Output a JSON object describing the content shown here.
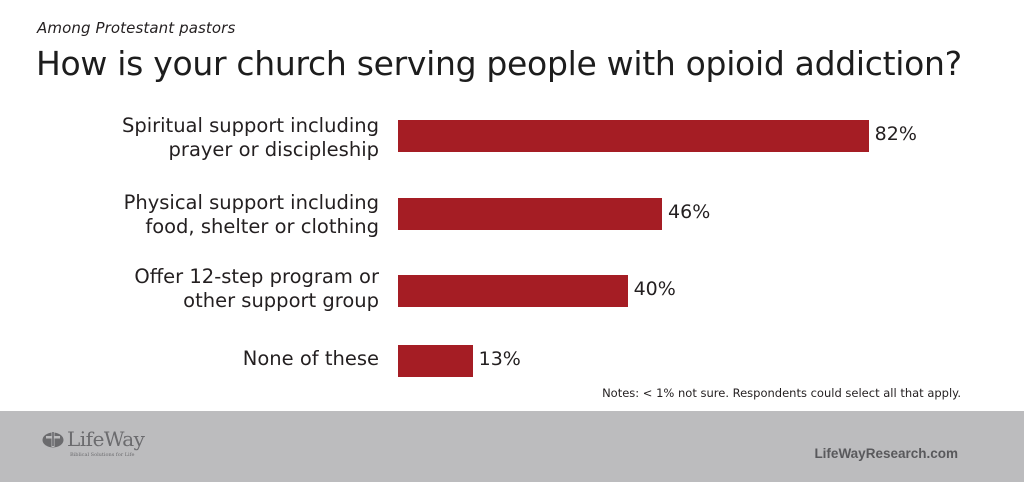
{
  "header": {
    "subtitle": "Among Protestant pastors",
    "title": "How is your church serving people with opioid addiction?"
  },
  "colors": {
    "bar": "#a51d24",
    "footer_bg": "#bcbcbe",
    "text": "#231f20"
  },
  "rows": [
    {
      "line1": "Spiritual support including",
      "line2": "prayer or discipleship",
      "value": 82,
      "label": "82%"
    },
    {
      "line1": "Physical support including",
      "line2": "food, shelter or clothing",
      "value": 46,
      "label": "46%"
    },
    {
      "line1": "Offer 12-step program or",
      "line2": "other support group",
      "value": 40,
      "label": "40%"
    },
    {
      "line1": "None of these",
      "line2": "",
      "value": 13,
      "label": "13%"
    }
  ],
  "notes": "Notes: < 1% not sure. Respondents could select all that apply.",
  "footer": {
    "logo_text": "LifeWay",
    "logo_tagline": "Biblical Solutions for Life",
    "logo_icon": "lifeway-cross-icon",
    "site": "LifeWayResearch.com"
  },
  "chart_data": {
    "type": "bar",
    "orientation": "horizontal",
    "title": "How is your church serving people with opioid addiction?",
    "subtitle": "Among Protestant pastors",
    "categories": [
      "Spiritual support including prayer or discipleship",
      "Physical support including food, shelter or clothing",
      "Offer 12-step program or other support group",
      "None of these"
    ],
    "values": [
      82,
      46,
      40,
      13
    ],
    "value_labels": [
      "82%",
      "46%",
      "40%",
      "13%"
    ],
    "xlabel": "",
    "ylabel": "",
    "xlim": [
      0,
      100
    ],
    "grid": false,
    "legend": "none",
    "annotations": [
      "Notes: < 1% not sure. Respondents could select all that apply."
    ]
  }
}
